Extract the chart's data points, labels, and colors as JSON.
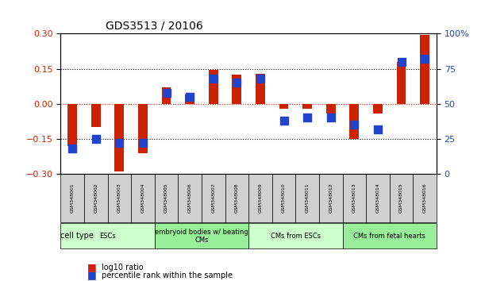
{
  "title": "GDS3513 / 20106",
  "samples": [
    "GSM348001",
    "GSM348002",
    "GSM348003",
    "GSM348004",
    "GSM348005",
    "GSM348006",
    "GSM348007",
    "GSM348008",
    "GSM348009",
    "GSM348010",
    "GSM348011",
    "GSM348012",
    "GSM348013",
    "GSM348014",
    "GSM348015",
    "GSM348016"
  ],
  "log10_ratio": [
    -0.18,
    -0.1,
    -0.29,
    -0.21,
    0.07,
    0.04,
    0.145,
    0.125,
    0.13,
    -0.02,
    -0.02,
    -0.04,
    -0.15,
    -0.04,
    0.18,
    0.295
  ],
  "percentile_rank": [
    18,
    25,
    22,
    22,
    58,
    55,
    68,
    65,
    68,
    38,
    40,
    40,
    35,
    32,
    80,
    82
  ],
  "cell_type_groups": [
    {
      "label": "ESCs",
      "start": 0,
      "end": 3,
      "color": "#ccffcc"
    },
    {
      "label": "embryoid bodies w/ beating\nCMs",
      "start": 4,
      "end": 7,
      "color": "#99ee99"
    },
    {
      "label": "CMs from ESCs",
      "start": 8,
      "end": 11,
      "color": "#ccffcc"
    },
    {
      "label": "CMs from fetal hearts",
      "start": 12,
      "end": 15,
      "color": "#99ee99"
    }
  ],
  "ylim_left": [
    -0.3,
    0.3
  ],
  "ylim_right": [
    0,
    100
  ],
  "yticks_left": [
    -0.3,
    -0.15,
    0,
    0.15,
    0.3
  ],
  "yticks_right": [
    0,
    25,
    50,
    75,
    100
  ],
  "bar_color_red": "#cc2200",
  "bar_color_blue": "#2244cc",
  "bg_color": "#ffffff",
  "grid_color": "#000000",
  "bar_width": 0.4,
  "dot_size": 60
}
